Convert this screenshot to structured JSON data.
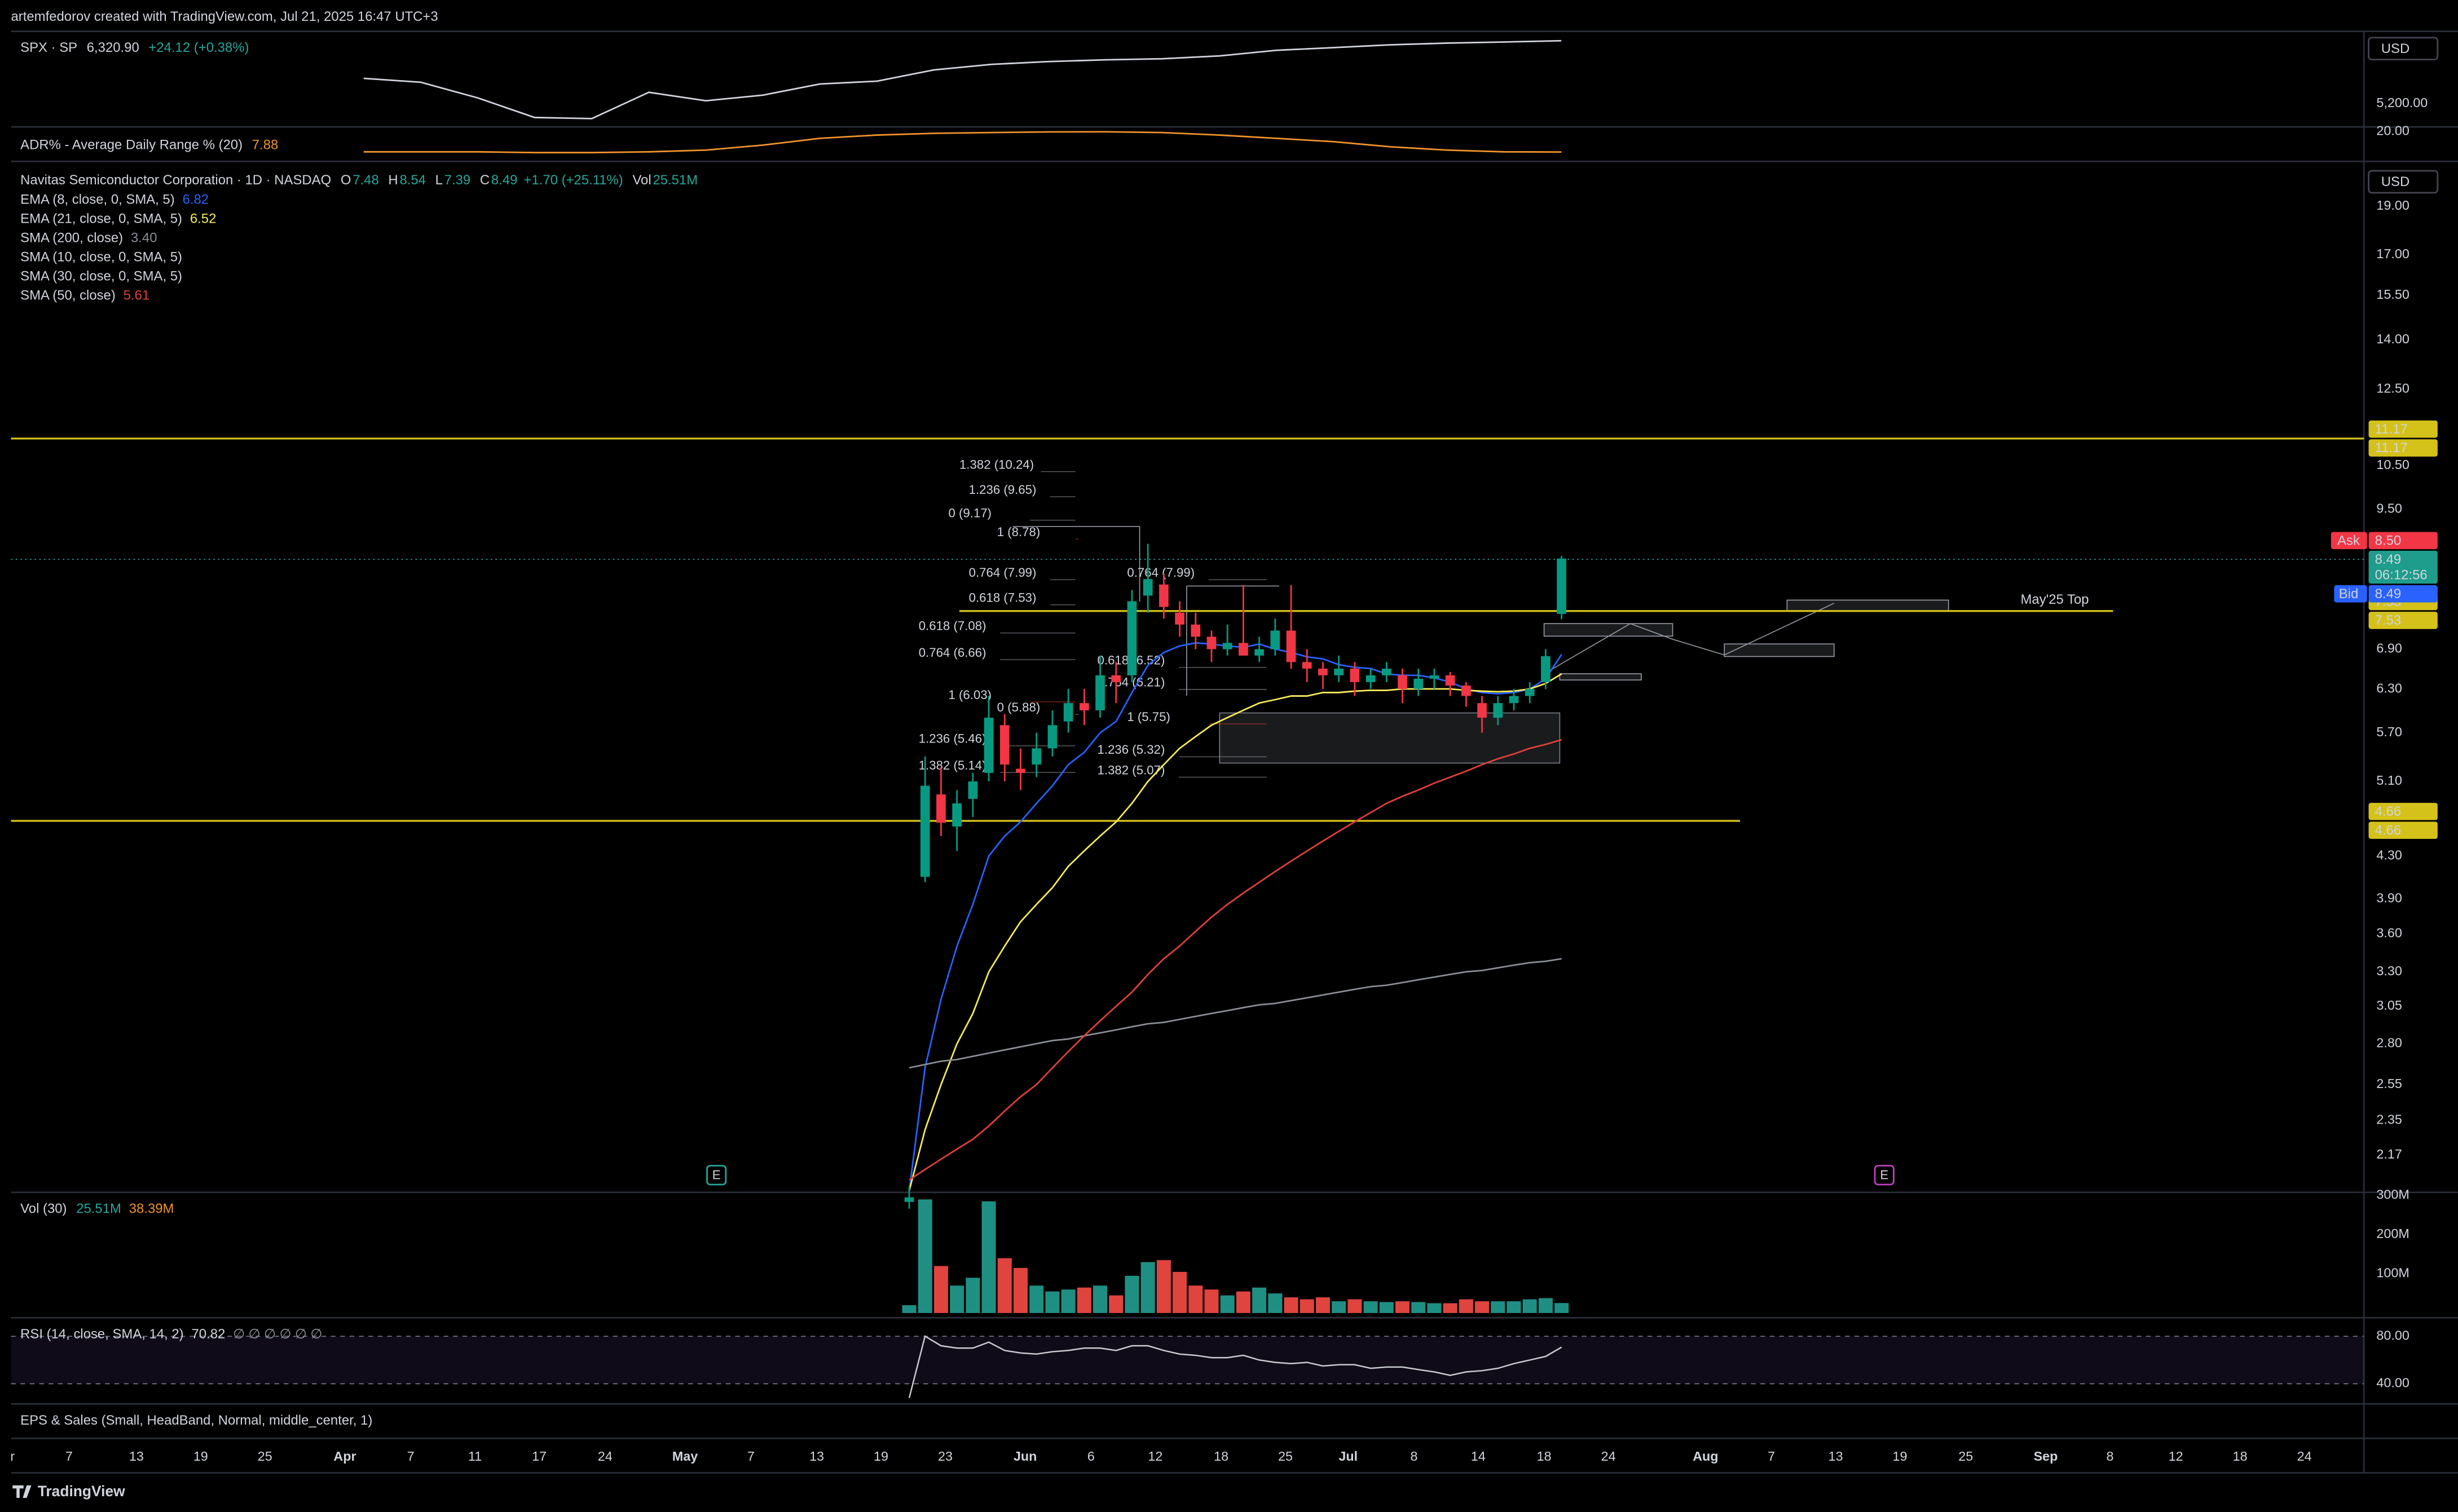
{
  "header": {
    "text": "artemfedorov created with TradingView.com, Jul 21, 2025 16:47 UTC+3"
  },
  "footer": {
    "brand": "TradingView"
  },
  "eps_pane": {
    "title": "EPS & Sales (Small, HeadBand, Normal, middle_center, 1)"
  },
  "time_axis": {
    "labels": [
      "r",
      "7",
      "13",
      "19",
      "25",
      "Apr",
      "7",
      "11",
      "17",
      "24",
      "May",
      "7",
      "13",
      "19",
      "23",
      "Jun",
      "6",
      "12",
      "18",
      "25",
      "Jul",
      "8",
      "14",
      "18",
      "24",
      "Aug",
      "7",
      "13",
      "19",
      "25",
      "Sep",
      "8",
      "12",
      "18",
      "24"
    ]
  },
  "chart_data": [
    {
      "type": "line",
      "title": "SPX · SP",
      "last": "6,320.90",
      "change": "+24.12 (+0.38%)",
      "currency": "USD",
      "color": "#d1d4dc",
      "values": [
        5650,
        5580,
        5300,
        4950,
        4930,
        5400,
        5250,
        5350,
        5550,
        5600,
        5800,
        5900,
        5950,
        5980,
        6000,
        6050,
        6150,
        6200,
        6250,
        6280,
        6300,
        6320.9
      ],
      "ylim": [
        4810,
        6490
      ],
      "yticks": [
        {
          "value": 5200,
          "label": "5,200.00"
        }
      ]
    },
    {
      "type": "line",
      "title": "ADR% - Average Daily Range % (20)",
      "value_label": "7.88",
      "color": "#f0932b",
      "values": [
        8,
        8,
        8,
        7.5,
        7.5,
        8,
        9,
        12,
        16,
        18,
        19,
        19.5,
        19.8,
        19.9,
        19.5,
        18,
        16,
        14,
        11,
        9,
        8,
        7.88
      ],
      "ylim": [
        3.2,
        21.9
      ],
      "yticks": [
        {
          "value": 20,
          "label": "20.00"
        }
      ]
    },
    {
      "type": "candlestick",
      "title": "Navitas Semiconductor Corporation · 1D · NASDAQ",
      "currency": "USD",
      "ohlc_legend": [
        {
          "key": "O",
          "value": "7.48"
        },
        {
          "key": "H",
          "value": "8.54"
        },
        {
          "key": "L",
          "value": "7.39"
        },
        {
          "key": "C",
          "value": "8.49"
        }
      ],
      "change": "+1.70 (+25.11%)",
      "vol_key": "Vol",
      "vol_value": "25.51M",
      "up_color": "#089981",
      "down_color": "#f23645",
      "open": [
        1.95,
        4.1,
        4.95,
        4.6,
        4.9,
        5.2,
        5.8,
        5.25,
        5.3,
        5.5,
        5.85,
        6.1,
        6.0,
        6.5,
        6.5,
        7.8,
        8.0,
        7.5,
        7.3,
        7.1,
        6.9,
        7.0,
        6.8,
        6.9,
        7.2,
        6.7,
        6.6,
        6.5,
        6.6,
        6.4,
        6.5,
        6.5,
        6.3,
        6.45,
        6.5,
        6.35,
        6.1,
        5.9,
        6.1,
        6.2,
        6.4,
        7.48
      ],
      "high": [
        2.02,
        5.4,
        5.27,
        5.0,
        5.2,
        6.2,
        5.95,
        5.5,
        5.7,
        6.0,
        6.3,
        6.3,
        6.8,
        6.7,
        7.9,
        8.78,
        8.2,
        7.7,
        7.5,
        7.2,
        7.3,
        7.99,
        7.1,
        7.4,
        7.99,
        6.9,
        6.7,
        6.8,
        6.7,
        6.6,
        6.7,
        6.6,
        6.6,
        6.6,
        6.55,
        6.4,
        6.2,
        6.2,
        6.3,
        6.4,
        6.9,
        8.54
      ],
      "low": [
        1.92,
        4.05,
        4.5,
        4.35,
        4.7,
        5.1,
        5.1,
        5.0,
        5.15,
        5.4,
        5.7,
        5.8,
        5.9,
        6.1,
        6.4,
        7.5,
        7.4,
        7.1,
        6.9,
        6.7,
        6.8,
        6.8,
        6.7,
        6.8,
        6.6,
        6.4,
        6.3,
        6.4,
        6.2,
        6.3,
        6.4,
        6.1,
        6.2,
        6.3,
        6.2,
        6.05,
        5.7,
        5.8,
        6.0,
        6.1,
        6.3,
        7.39
      ],
      "close": [
        1.97,
        5.05,
        4.64,
        4.85,
        5.1,
        5.9,
        5.3,
        5.2,
        5.5,
        5.8,
        6.1,
        6.0,
        6.5,
        6.4,
        7.7,
        8.1,
        7.6,
        7.3,
        7.1,
        6.9,
        7.0,
        6.8,
        6.9,
        7.2,
        6.7,
        6.6,
        6.5,
        6.6,
        6.4,
        6.5,
        6.6,
        6.3,
        6.45,
        6.5,
        6.35,
        6.2,
        5.9,
        6.1,
        6.2,
        6.3,
        6.79,
        8.49
      ],
      "overlays": [
        {
          "name": "EMA (8, close, 0, SMA, 5)",
          "value_label": "6.82",
          "color": "#2962ff",
          "values": [
            2.0,
            2.65,
            3.1,
            3.5,
            3.85,
            4.3,
            4.5,
            4.65,
            4.85,
            5.05,
            5.3,
            5.45,
            5.7,
            5.85,
            6.25,
            6.65,
            6.85,
            6.95,
            7.0,
            6.98,
            6.95,
            6.93,
            6.98,
            6.9,
            6.85,
            6.78,
            6.75,
            6.66,
            6.62,
            6.6,
            6.52,
            6.5,
            6.5,
            6.46,
            6.4,
            6.3,
            6.25,
            6.23,
            6.25,
            6.3,
            6.45,
            6.82
          ]
        },
        {
          "name": "EMA (21, close, 0, SMA, 5)",
          "value_label": "6.52",
          "color": "#f5eb5a",
          "values": [
            2.0,
            2.3,
            2.55,
            2.8,
            3.0,
            3.3,
            3.5,
            3.7,
            3.85,
            4.0,
            4.2,
            4.35,
            4.5,
            4.65,
            4.85,
            5.1,
            5.3,
            5.5,
            5.65,
            5.8,
            5.9,
            6.0,
            6.1,
            6.15,
            6.2,
            6.2,
            6.25,
            6.25,
            6.27,
            6.28,
            6.28,
            6.3,
            6.3,
            6.3,
            6.3,
            6.28,
            6.27,
            6.26,
            6.27,
            6.3,
            6.38,
            6.52
          ]
        },
        {
          "name": "SMA (200, close)",
          "value_label": "3.40",
          "color": "#8a8d96",
          "values": [
            2.65,
            2.67,
            2.69,
            2.7,
            2.72,
            2.74,
            2.76,
            2.78,
            2.8,
            2.82,
            2.83,
            2.85,
            2.87,
            2.89,
            2.91,
            2.93,
            2.94,
            2.96,
            2.98,
            3.0,
            3.02,
            3.04,
            3.06,
            3.07,
            3.09,
            3.11,
            3.13,
            3.15,
            3.17,
            3.19,
            3.2,
            3.22,
            3.24,
            3.26,
            3.28,
            3.3,
            3.31,
            3.33,
            3.35,
            3.37,
            3.38,
            3.4
          ]
        },
        {
          "name": "SMA (10, close, 0, SMA, 5)"
        },
        {
          "name": "SMA (30, close, 0, SMA, 5)"
        },
        {
          "name": "SMA (50, close)",
          "value_label": "5.61",
          "color": "#e0403a",
          "values": [
            2.05,
            2.1,
            2.15,
            2.2,
            2.25,
            2.32,
            2.4,
            2.48,
            2.55,
            2.65,
            2.75,
            2.85,
            2.95,
            3.05,
            3.15,
            3.28,
            3.4,
            3.5,
            3.62,
            3.74,
            3.85,
            3.95,
            4.05,
            4.15,
            4.25,
            4.35,
            4.45,
            4.55,
            4.65,
            4.75,
            4.85,
            4.93,
            5.0,
            5.08,
            5.15,
            5.22,
            5.3,
            5.37,
            5.43,
            5.5,
            5.55,
            5.61
          ]
        }
      ],
      "log_scale": true,
      "ylim": [
        2.0,
        20.9
      ],
      "yticks": [
        {
          "value": 19,
          "label": "19.00"
        },
        {
          "value": 17,
          "label": "17.00"
        },
        {
          "value": 15.5,
          "label": "15.50"
        },
        {
          "value": 14,
          "label": "14.00"
        },
        {
          "value": 12.5,
          "label": "12.50"
        },
        {
          "value": 10.5,
          "label": "10.50"
        },
        {
          "value": 9.5,
          "label": "9.50"
        },
        {
          "value": 6.9,
          "label": "6.90"
        },
        {
          "value": 6.3,
          "label": "6.30"
        },
        {
          "value": 5.7,
          "label": "5.70"
        },
        {
          "value": 5.1,
          "label": "5.10"
        },
        {
          "value": 4.3,
          "label": "4.30"
        },
        {
          "value": 3.9,
          "label": "3.90"
        },
        {
          "value": 3.6,
          "label": "3.60"
        },
        {
          "value": 3.3,
          "label": "3.30"
        },
        {
          "value": 3.05,
          "label": "3.05"
        },
        {
          "value": 2.8,
          "label": "2.80"
        },
        {
          "value": 2.55,
          "label": "2.55"
        },
        {
          "value": 2.35,
          "label": "2.35"
        },
        {
          "value": 2.17,
          "label": "2.17"
        }
      ],
      "hlines": [
        {
          "value": 11.17,
          "label": "11.17",
          "color": "#d4c21a"
        },
        {
          "value": 7.53,
          "label": "7.53",
          "color": "#d4c21a"
        },
        {
          "value": 4.66,
          "label": "4.66",
          "color": "#d4c21a"
        }
      ],
      "annotation": "May'25 Top",
      "quote": {
        "ask_key": "Ask",
        "ask": "8.50",
        "last": "8.49",
        "countdown": "06:12:56",
        "bid_key": "Bid",
        "bid": "8.49"
      },
      "earnings_markers": [
        "E",
        "E"
      ],
      "fib_labels": [
        {
          "text": "1.382 (10.24)",
          "color": "#8a8d96"
        },
        {
          "text": "1.236 (9.65)",
          "color": "#8a8d96"
        },
        {
          "text": "0 (9.17)",
          "color": "#8a8d96"
        },
        {
          "text": "1 (8.78)",
          "color": "#c0392b"
        },
        {
          "text": "0.764 (7.99)",
          "color": "#8a8d96"
        },
        {
          "text": "0.618 (7.53)",
          "color": "#8a8d96"
        },
        {
          "text": "0.618 (7.08)",
          "color": "#8a8d96"
        },
        {
          "text": "0.764 (6.66)",
          "color": "#8a8d96"
        },
        {
          "text": "1 (6.03)",
          "color": "#c0392b"
        },
        {
          "text": "0 (5.88)",
          "color": "#8a8d96"
        },
        {
          "text": "1.236 (5.46)",
          "color": "#8a8d96"
        },
        {
          "text": "1.382 (5.14)",
          "color": "#8a8d96"
        },
        {
          "text": "0.764 (7.99)",
          "color": "#8a8d96"
        },
        {
          "text": "0.618 (6.52)",
          "color": "#8a8d96"
        },
        {
          "text": "0.764 (6.21)",
          "color": "#8a8d96"
        },
        {
          "text": "1 (5.75)",
          "color": "#c0392b"
        },
        {
          "text": "1.236 (5.32)",
          "color": "#8a8d96"
        },
        {
          "text": "1.382 (5.07)",
          "color": "#8a8d96"
        }
      ]
    },
    {
      "type": "bar",
      "title": "Vol (30)",
      "legend_values": [
        "25.51M",
        "38.39M"
      ],
      "legend_colors": [
        "#26a69a",
        "#f0932b"
      ],
      "up_color": "#1f8f84",
      "down_color": "#e0443e",
      "values": [
        20,
        290,
        120,
        70,
        90,
        285,
        140,
        115,
        70,
        55,
        60,
        65,
        70,
        45,
        95,
        130,
        135,
        105,
        70,
        60,
        45,
        55,
        65,
        50,
        40,
        35,
        40,
        30,
        35,
        30,
        28,
        30,
        28,
        25,
        25,
        35,
        30,
        30,
        30,
        35,
        38,
        25.51
      ],
      "ylim": [
        0,
        300
      ],
      "yticks": [
        {
          "value": 100,
          "label": "100M"
        },
        {
          "value": 200,
          "label": "200M"
        },
        {
          "value": 300,
          "label": "300M"
        }
      ]
    },
    {
      "type": "line",
      "title": "RSI (14, close, SMA, 14, 2)",
      "value_label": "70.82",
      "extra": "∅ ∅ ∅ ∅ ∅ ∅",
      "color": "#c8cad0",
      "values": [
        28,
        80,
        72,
        70,
        70,
        75,
        68,
        66,
        65,
        67,
        68,
        70,
        70,
        68,
        72,
        72,
        68,
        65,
        64,
        62,
        62,
        64,
        60,
        58,
        57,
        58,
        55,
        56,
        56,
        53,
        54,
        54,
        52,
        50,
        47,
        50,
        51,
        53,
        57,
        60,
        63,
        70.82
      ],
      "ylim": [
        27,
        93
      ],
      "yticks": [
        {
          "value": 80,
          "label": "80.00"
        },
        {
          "value": 40,
          "label": "40.00"
        }
      ]
    }
  ]
}
